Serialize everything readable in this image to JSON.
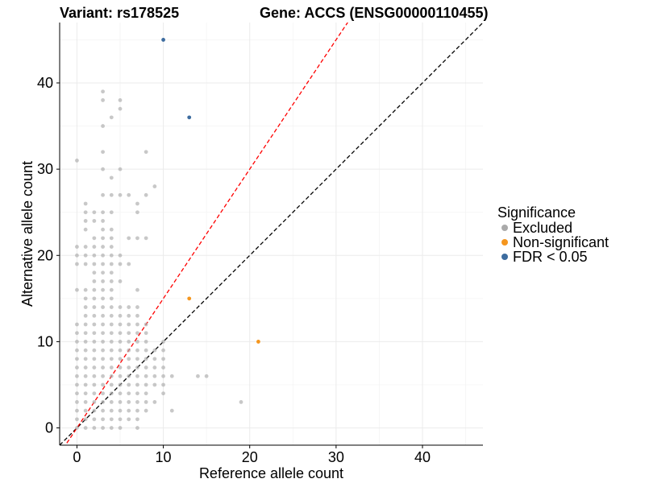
{
  "chart_data": {
    "type": "scatter",
    "title_left": "Variant: rs178525",
    "title_right": "Gene: ACCS (ENSG00000110455)",
    "xlabel": "Reference allele count",
    "ylabel": "Alternative allele count",
    "xlim": [
      -2,
      47
    ],
    "ylim": [
      -2,
      47
    ],
    "xticks": [
      0,
      10,
      20,
      30,
      40
    ],
    "yticks": [
      0,
      10,
      20,
      30,
      40
    ],
    "grid": true,
    "reference_lines": [
      {
        "name": "y = x",
        "slope": 1,
        "intercept": 0,
        "color": "#000000",
        "dash": "dashed"
      },
      {
        "name": "fitted",
        "slope": 1.5,
        "intercept": 0,
        "color": "#ff0000",
        "dash": "dashed"
      }
    ],
    "legend": {
      "title": "Significance",
      "position": "right",
      "entries": [
        {
          "label": "Excluded",
          "color": "#aaaaaa"
        },
        {
          "label": "Non-significant",
          "color": "#f5961e"
        },
        {
          "label": "FDR < 0.05",
          "color": "#3d6c9f"
        }
      ]
    },
    "series": [
      {
        "name": "Excluded",
        "color": "#aaaaaa",
        "points": [
          [
            0,
            0
          ],
          [
            0,
            1
          ],
          [
            0,
            2
          ],
          [
            0,
            3
          ],
          [
            0,
            4
          ],
          [
            0,
            5
          ],
          [
            0,
            6
          ],
          [
            0,
            7
          ],
          [
            0,
            8
          ],
          [
            0,
            9
          ],
          [
            0,
            10
          ],
          [
            0,
            11
          ],
          [
            0,
            12
          ],
          [
            0,
            16
          ],
          [
            0,
            19
          ],
          [
            0,
            20
          ],
          [
            0,
            21
          ],
          [
            0,
            31
          ],
          [
            1,
            0
          ],
          [
            1,
            1
          ],
          [
            1,
            2
          ],
          [
            1,
            3
          ],
          [
            1,
            4
          ],
          [
            1,
            5
          ],
          [
            1,
            6
          ],
          [
            1,
            7
          ],
          [
            1,
            8
          ],
          [
            1,
            9
          ],
          [
            1,
            10
          ],
          [
            1,
            11
          ],
          [
            1,
            12
          ],
          [
            1,
            13
          ],
          [
            1,
            14
          ],
          [
            1,
            15
          ],
          [
            1,
            16
          ],
          [
            1,
            19
          ],
          [
            1,
            20
          ],
          [
            1,
            21
          ],
          [
            1,
            23
          ],
          [
            1,
            24
          ],
          [
            1,
            25
          ],
          [
            1,
            26
          ],
          [
            2,
            0
          ],
          [
            2,
            1
          ],
          [
            2,
            2
          ],
          [
            2,
            3
          ],
          [
            2,
            4
          ],
          [
            2,
            5
          ],
          [
            2,
            6
          ],
          [
            2,
            7
          ],
          [
            2,
            8
          ],
          [
            2,
            9
          ],
          [
            2,
            10
          ],
          [
            2,
            11
          ],
          [
            2,
            12
          ],
          [
            2,
            13
          ],
          [
            2,
            14
          ],
          [
            2,
            15
          ],
          [
            2,
            16
          ],
          [
            2,
            17
          ],
          [
            2,
            18
          ],
          [
            2,
            19
          ],
          [
            2,
            20
          ],
          [
            2,
            21
          ],
          [
            2,
            22
          ],
          [
            2,
            24
          ],
          [
            2,
            25
          ],
          [
            3,
            0
          ],
          [
            3,
            1
          ],
          [
            3,
            2
          ],
          [
            3,
            3
          ],
          [
            3,
            4
          ],
          [
            3,
            5
          ],
          [
            3,
            6
          ],
          [
            3,
            7
          ],
          [
            3,
            8
          ],
          [
            3,
            9
          ],
          [
            3,
            10
          ],
          [
            3,
            11
          ],
          [
            3,
            12
          ],
          [
            3,
            13
          ],
          [
            3,
            14
          ],
          [
            3,
            15
          ],
          [
            3,
            16
          ],
          [
            3,
            17
          ],
          [
            3,
            18
          ],
          [
            3,
            19
          ],
          [
            3,
            20
          ],
          [
            3,
            21
          ],
          [
            3,
            22
          ],
          [
            3,
            23
          ],
          [
            3,
            24
          ],
          [
            3,
            25
          ],
          [
            3,
            27
          ],
          [
            3,
            30
          ],
          [
            3,
            32
          ],
          [
            3,
            35
          ],
          [
            3,
            38
          ],
          [
            3,
            39
          ],
          [
            4,
            0
          ],
          [
            4,
            1
          ],
          [
            4,
            2
          ],
          [
            4,
            3
          ],
          [
            4,
            4
          ],
          [
            4,
            5
          ],
          [
            4,
            6
          ],
          [
            4,
            7
          ],
          [
            4,
            8
          ],
          [
            4,
            9
          ],
          [
            4,
            10
          ],
          [
            4,
            11
          ],
          [
            4,
            12
          ],
          [
            4,
            13
          ],
          [
            4,
            14
          ],
          [
            4,
            15
          ],
          [
            4,
            16
          ],
          [
            4,
            17
          ],
          [
            4,
            18
          ],
          [
            4,
            19
          ],
          [
            4,
            20
          ],
          [
            4,
            21
          ],
          [
            4,
            22
          ],
          [
            4,
            23
          ],
          [
            4,
            25
          ],
          [
            4,
            27
          ],
          [
            4,
            29
          ],
          [
            4,
            36
          ],
          [
            5,
            0
          ],
          [
            5,
            1
          ],
          [
            5,
            2
          ],
          [
            5,
            3
          ],
          [
            5,
            4
          ],
          [
            5,
            5
          ],
          [
            5,
            6
          ],
          [
            5,
            7
          ],
          [
            5,
            8
          ],
          [
            5,
            9
          ],
          [
            5,
            10
          ],
          [
            5,
            11
          ],
          [
            5,
            12
          ],
          [
            5,
            13
          ],
          [
            5,
            14
          ],
          [
            5,
            17
          ],
          [
            5,
            19
          ],
          [
            5,
            20
          ],
          [
            5,
            27
          ],
          [
            5,
            30
          ],
          [
            5,
            37
          ],
          [
            5,
            38
          ],
          [
            6,
            1
          ],
          [
            6,
            2
          ],
          [
            6,
            3
          ],
          [
            6,
            4
          ],
          [
            6,
            5
          ],
          [
            6,
            6
          ],
          [
            6,
            7
          ],
          [
            6,
            8
          ],
          [
            6,
            9
          ],
          [
            6,
            10
          ],
          [
            6,
            11
          ],
          [
            6,
            12
          ],
          [
            6,
            13
          ],
          [
            6,
            14
          ],
          [
            6,
            19
          ],
          [
            6,
            22
          ],
          [
            6,
            27
          ],
          [
            7,
            0
          ],
          [
            7,
            1
          ],
          [
            7,
            2
          ],
          [
            7,
            3
          ],
          [
            7,
            4
          ],
          [
            7,
            5
          ],
          [
            7,
            6
          ],
          [
            7,
            7
          ],
          [
            7,
            8
          ],
          [
            7,
            9
          ],
          [
            7,
            10
          ],
          [
            7,
            11
          ],
          [
            7,
            12
          ],
          [
            7,
            13
          ],
          [
            7,
            14
          ],
          [
            7,
            16
          ],
          [
            7,
            22
          ],
          [
            7,
            25
          ],
          [
            7,
            26
          ],
          [
            8,
            2
          ],
          [
            8,
            3
          ],
          [
            8,
            4
          ],
          [
            8,
            5
          ],
          [
            8,
            6
          ],
          [
            8,
            7
          ],
          [
            8,
            8
          ],
          [
            8,
            9
          ],
          [
            8,
            10
          ],
          [
            8,
            11
          ],
          [
            8,
            12
          ],
          [
            8,
            22
          ],
          [
            8,
            27
          ],
          [
            8,
            32
          ],
          [
            9,
            3
          ],
          [
            9,
            5
          ],
          [
            9,
            6
          ],
          [
            9,
            7
          ],
          [
            9,
            8
          ],
          [
            9,
            9
          ],
          [
            9,
            28
          ],
          [
            10,
            4
          ],
          [
            10,
            5
          ],
          [
            10,
            6
          ],
          [
            10,
            7
          ],
          [
            10,
            8
          ],
          [
            10,
            9
          ],
          [
            10,
            10
          ],
          [
            11,
            2
          ],
          [
            11,
            6
          ],
          [
            14,
            6
          ],
          [
            15,
            6
          ],
          [
            19,
            3
          ]
        ]
      },
      {
        "name": "Non-significant",
        "color": "#f5961e",
        "points": [
          [
            13,
            15
          ],
          [
            21,
            10
          ]
        ]
      },
      {
        "name": "FDR < 0.05",
        "color": "#3d6c9f",
        "points": [
          [
            10,
            45
          ],
          [
            13,
            36
          ]
        ]
      }
    ]
  }
}
